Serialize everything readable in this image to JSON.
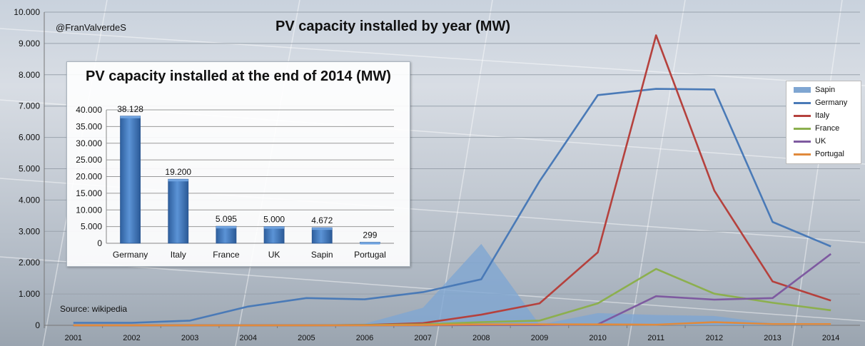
{
  "header": {
    "credit": "@FranValverdeS",
    "title": "PV capacity installed by year (MW)",
    "source": "Source: wikipedia"
  },
  "legend": {
    "items": [
      {
        "label": "Sapin",
        "color": "#7fa6d2",
        "kind": "area"
      },
      {
        "label": "Germany",
        "color": "#4a7ab7",
        "kind": "line"
      },
      {
        "label": "Italy",
        "color": "#b5413d",
        "kind": "line"
      },
      {
        "label": "France",
        "color": "#8caf4e",
        "kind": "line"
      },
      {
        "label": "UK",
        "color": "#7e5aa0",
        "kind": "line"
      },
      {
        "label": "Portugal",
        "color": "#e08a3c",
        "kind": "line"
      }
    ]
  },
  "chart_data": [
    {
      "type": "line",
      "title": "PV capacity installed by year (MW)",
      "categories": [
        "2001",
        "2002",
        "2003",
        "2004",
        "2005",
        "2006",
        "2007",
        "2008",
        "2009",
        "2010",
        "2011",
        "2012",
        "2013",
        "2014"
      ],
      "ylim": [
        0,
        10000
      ],
      "yticks": [
        "0",
        "1.000",
        "2.000",
        "3.000",
        "4.000",
        "5.000",
        "6.000",
        "7.000",
        "8.000",
        "9.000",
        "10.000"
      ],
      "grid": true,
      "legend_position": "right",
      "series": [
        {
          "name": "Sapin",
          "kind": "area",
          "color": "#7fa6d2",
          "values": [
            0,
            0,
            0,
            0,
            0,
            50,
            560,
            2600,
            20,
            390,
            330,
            300,
            60,
            20
          ]
        },
        {
          "name": "Germany",
          "kind": "line",
          "color": "#4a7ab7",
          "values": [
            80,
            80,
            150,
            600,
            870,
            830,
            1060,
            1470,
            4600,
            7350,
            7550,
            7530,
            3300,
            2520
          ]
        },
        {
          "name": "Italy",
          "kind": "line",
          "color": "#b5413d",
          "values": [
            0,
            0,
            0,
            0,
            0,
            10,
            70,
            340,
            700,
            2330,
            9260,
            4300,
            1400,
            790
          ]
        },
        {
          "name": "France",
          "kind": "line",
          "color": "#8caf4e",
          "values": [
            0,
            0,
            0,
            0,
            0,
            10,
            30,
            100,
            150,
            700,
            1800,
            1010,
            720,
            480
          ]
        },
        {
          "name": "UK",
          "kind": "line",
          "color": "#7e5aa0",
          "values": [
            0,
            0,
            0,
            0,
            0,
            0,
            0,
            10,
            10,
            30,
            930,
            820,
            870,
            2280
          ]
        },
        {
          "name": "Portugal",
          "kind": "line",
          "color": "#e08a3c",
          "values": [
            0,
            0,
            0,
            0,
            0,
            0,
            10,
            30,
            30,
            30,
            20,
            100,
            40,
            40
          ]
        }
      ]
    },
    {
      "type": "bar",
      "title": "PV capacity installed at the end of 2014 (MW)",
      "categories": [
        "Germany",
        "Italy",
        "France",
        "UK",
        "Sapin",
        "Portugal"
      ],
      "values": [
        38128,
        19200,
        5095,
        5000,
        4672,
        299
      ],
      "value_labels": [
        "38.128",
        "19.200",
        "5.095",
        "5.000",
        "4.672",
        "299"
      ],
      "ylim": [
        0,
        40000
      ],
      "yticks": [
        "0",
        "5.000",
        "10.000",
        "15.000",
        "20.000",
        "25.000",
        "30.000",
        "35.000",
        "40.000"
      ],
      "grid": true,
      "color": "#3f77c0"
    }
  ]
}
